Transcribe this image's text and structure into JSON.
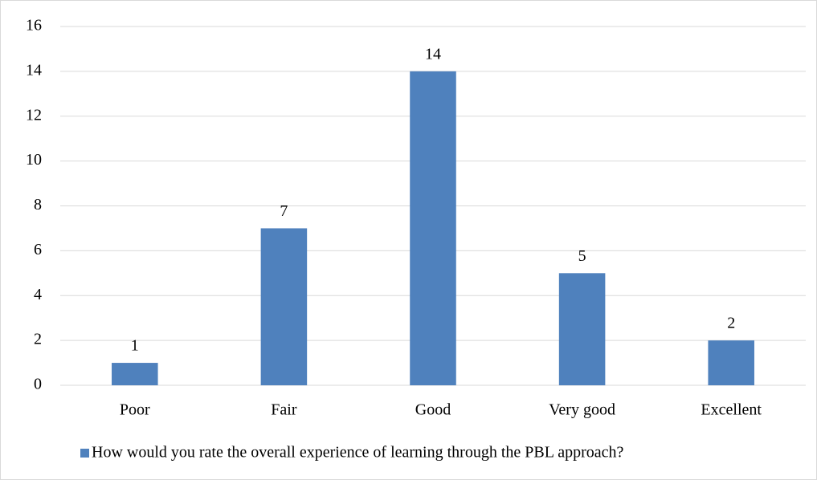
{
  "chart_data": {
    "type": "bar",
    "categories": [
      "Poor",
      "Fair",
      "Good",
      "Very good",
      "Excellent"
    ],
    "series": [
      {
        "name": "How would you rate the overall experience of learning through the PBL approach?",
        "color": "#4f81bd",
        "values": [
          1,
          7,
          14,
          5,
          2
        ]
      }
    ],
    "ylim": [
      0,
      16
    ],
    "yticks": [
      0,
      2,
      4,
      6,
      8,
      10,
      12,
      14,
      16
    ],
    "grid": true,
    "legend": "bottom"
  }
}
